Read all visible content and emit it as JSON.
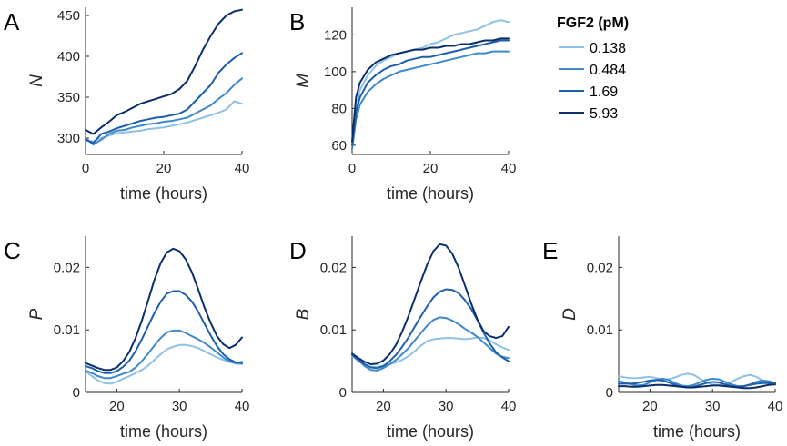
{
  "legend": {
    "title": "FGF2 (pM)",
    "entries": [
      "0.138",
      "0.484",
      "1.69",
      "5.93"
    ],
    "colors": [
      "#8ec1e6",
      "#3d89c9",
      "#1d5fa8",
      "#0b2f6b"
    ]
  },
  "chart_data": [
    {
      "id": "A",
      "type": "line",
      "panel_label": "A",
      "xlabel": "time (hours)",
      "ylabel": "N",
      "xlim": [
        0,
        40
      ],
      "ylim": [
        280,
        460
      ],
      "xticks": [
        0,
        20,
        40
      ],
      "yticks": [
        300,
        350,
        400,
        450
      ],
      "x": [
        0,
        2,
        4,
        6,
        8,
        10,
        12,
        14,
        16,
        18,
        20,
        22,
        24,
        26,
        28,
        30,
        32,
        34,
        36,
        38,
        40
      ],
      "series": [
        {
          "name": "0.138",
          "values": [
            297,
            296,
            300,
            303,
            306,
            307,
            308,
            309,
            311,
            312,
            313,
            315,
            317,
            319,
            322,
            325,
            328,
            331,
            335,
            345,
            342
          ]
        },
        {
          "name": "0.484",
          "values": [
            300,
            292,
            298,
            305,
            309,
            310,
            313,
            315,
            317,
            318,
            320,
            321,
            323,
            325,
            330,
            335,
            340,
            348,
            355,
            365,
            373
          ]
        },
        {
          "name": "1.69",
          "values": [
            298,
            294,
            305,
            308,
            312,
            315,
            318,
            321,
            323,
            325,
            326,
            328,
            330,
            335,
            345,
            355,
            365,
            380,
            390,
            398,
            404
          ]
        },
        {
          "name": "5.93",
          "values": [
            310,
            305,
            313,
            320,
            328,
            332,
            337,
            342,
            345,
            348,
            351,
            354,
            360,
            370,
            388,
            408,
            425,
            440,
            450,
            455,
            457
          ]
        }
      ]
    },
    {
      "id": "B",
      "type": "line",
      "panel_label": "B",
      "xlabel": "time (hours)",
      "ylabel": "M",
      "xlim": [
        0,
        40
      ],
      "ylim": [
        55,
        135
      ],
      "xticks": [
        0,
        20,
        40
      ],
      "yticks": [
        60,
        80,
        100,
        120
      ],
      "x": [
        0,
        1,
        2,
        4,
        6,
        8,
        10,
        12,
        14,
        16,
        18,
        20,
        22,
        24,
        26,
        28,
        30,
        32,
        34,
        36,
        38,
        40
      ],
      "series": [
        {
          "name": "0.138",
          "values": [
            60,
            80,
            90,
            98,
            103,
            106,
            108,
            110,
            111,
            112,
            113,
            115,
            116,
            118,
            120,
            121,
            122,
            123,
            125,
            127,
            128,
            127
          ]
        },
        {
          "name": "0.484",
          "values": [
            58,
            74,
            82,
            89,
            93,
            96,
            98,
            100,
            101,
            102,
            103,
            104,
            105,
            106,
            107,
            108,
            109,
            110,
            110,
            111,
            111,
            111
          ]
        },
        {
          "name": "1.69",
          "values": [
            60,
            78,
            86,
            94,
            98,
            101,
            103,
            104,
            106,
            107,
            108,
            108,
            109,
            110,
            111,
            112,
            113,
            114,
            115,
            116,
            117,
            117
          ]
        },
        {
          "name": "5.93",
          "values": [
            62,
            86,
            94,
            101,
            105,
            107,
            109,
            110,
            111,
            112,
            112,
            113,
            113,
            114,
            114,
            115,
            115,
            116,
            117,
            117,
            118,
            118
          ]
        }
      ]
    },
    {
      "id": "C",
      "type": "line",
      "panel_label": "C",
      "xlabel": "time (hours)",
      "ylabel": "P",
      "xlim": [
        15,
        40
      ],
      "ylim": [
        0,
        0.025
      ],
      "xticks": [
        20,
        30,
        40
      ],
      "yticks": [
        0,
        0.01,
        0.02
      ],
      "ytick_labels": [
        "0",
        "0.01",
        "0.02"
      ],
      "x": [
        15,
        16,
        17,
        18,
        19,
        20,
        21,
        22,
        23,
        24,
        25,
        26,
        27,
        28,
        29,
        30,
        31,
        32,
        33,
        34,
        35,
        36,
        37,
        38,
        39,
        40
      ],
      "series": [
        {
          "name": "0.138",
          "values": [
            0.0034,
            0.0026,
            0.0019,
            0.0015,
            0.0014,
            0.0017,
            0.0022,
            0.0026,
            0.0031,
            0.0036,
            0.0043,
            0.0052,
            0.0061,
            0.0069,
            0.0073,
            0.0076,
            0.0076,
            0.0074,
            0.0071,
            0.0066,
            0.0061,
            0.0056,
            0.0052,
            0.0049,
            0.0046,
            0.0045
          ]
        },
        {
          "name": "0.484",
          "values": [
            0.0035,
            0.0031,
            0.0026,
            0.0023,
            0.0023,
            0.0026,
            0.003,
            0.0033,
            0.004,
            0.005,
            0.0062,
            0.0075,
            0.0087,
            0.0096,
            0.0099,
            0.0099,
            0.0095,
            0.009,
            0.0085,
            0.0079,
            0.0072,
            0.0064,
            0.0056,
            0.005,
            0.0047,
            0.0049
          ]
        },
        {
          "name": "1.69",
          "values": [
            0.0042,
            0.0039,
            0.0034,
            0.0031,
            0.0031,
            0.0034,
            0.0041,
            0.0051,
            0.0066,
            0.0085,
            0.0106,
            0.0127,
            0.0145,
            0.0158,
            0.0162,
            0.0162,
            0.0156,
            0.0145,
            0.0129,
            0.011,
            0.0091,
            0.0074,
            0.0061,
            0.0053,
            0.0048,
            0.0047
          ]
        },
        {
          "name": "5.93",
          "values": [
            0.0047,
            0.0043,
            0.0039,
            0.0036,
            0.0036,
            0.004,
            0.005,
            0.0065,
            0.0087,
            0.0115,
            0.0147,
            0.018,
            0.0207,
            0.0224,
            0.023,
            0.0226,
            0.0213,
            0.0192,
            0.0165,
            0.0136,
            0.0111,
            0.009,
            0.0077,
            0.0071,
            0.0076,
            0.0088
          ]
        }
      ]
    },
    {
      "id": "D",
      "type": "line",
      "panel_label": "D",
      "xlabel": "time (hours)",
      "ylabel": "B",
      "xlim": [
        15,
        40
      ],
      "ylim": [
        0,
        0.025
      ],
      "xticks": [
        20,
        30,
        40
      ],
      "yticks": [
        0,
        0.01,
        0.02
      ],
      "ytick_labels": [
        "0",
        "0.01",
        "0.02"
      ],
      "x": [
        15,
        16,
        17,
        18,
        19,
        20,
        21,
        22,
        23,
        24,
        25,
        26,
        27,
        28,
        29,
        30,
        31,
        32,
        33,
        34,
        35,
        36,
        37,
        38,
        39,
        40
      ],
      "series": [
        {
          "name": "0.138",
          "values": [
            0.0058,
            0.005,
            0.0043,
            0.0041,
            0.0041,
            0.0043,
            0.0045,
            0.0048,
            0.0052,
            0.0058,
            0.0066,
            0.0075,
            0.0082,
            0.0085,
            0.0086,
            0.0087,
            0.0087,
            0.0086,
            0.0085,
            0.0086,
            0.0088,
            0.0087,
            0.0083,
            0.0077,
            0.0072,
            0.0068
          ]
        },
        {
          "name": "0.484",
          "values": [
            0.0062,
            0.0052,
            0.0042,
            0.0036,
            0.0035,
            0.0039,
            0.0045,
            0.0052,
            0.0061,
            0.0071,
            0.0083,
            0.0095,
            0.0107,
            0.0116,
            0.012,
            0.0119,
            0.0115,
            0.0109,
            0.0102,
            0.0096,
            0.0089,
            0.008,
            0.0071,
            0.0062,
            0.0057,
            0.0055
          ]
        },
        {
          "name": "1.69",
          "values": [
            0.006,
            0.0052,
            0.0045,
            0.004,
            0.0039,
            0.0042,
            0.005,
            0.006,
            0.0073,
            0.0088,
            0.0105,
            0.0122,
            0.0138,
            0.0152,
            0.0161,
            0.0165,
            0.0164,
            0.0159,
            0.0148,
            0.0134,
            0.0116,
            0.0096,
            0.0078,
            0.0064,
            0.0056,
            0.005
          ]
        },
        {
          "name": "5.93",
          "values": [
            0.0062,
            0.0055,
            0.0049,
            0.0045,
            0.0046,
            0.0051,
            0.0061,
            0.0076,
            0.0097,
            0.0122,
            0.015,
            0.0178,
            0.0205,
            0.0226,
            0.0237,
            0.0235,
            0.0222,
            0.02,
            0.0172,
            0.0143,
            0.0117,
            0.0098,
            0.009,
            0.0087,
            0.009,
            0.0105
          ]
        }
      ]
    },
    {
      "id": "E",
      "type": "line",
      "panel_label": "E",
      "xlabel": "time (hours)",
      "ylabel": "D",
      "xlim": [
        15,
        40
      ],
      "ylim": [
        0,
        0.025
      ],
      "xticks": [
        20,
        30,
        40
      ],
      "yticks": [
        0,
        0.01,
        0.02
      ],
      "ytick_labels": [
        "0",
        "0.01",
        "0.02"
      ],
      "x": [
        15,
        16,
        17,
        18,
        19,
        20,
        21,
        22,
        23,
        24,
        25,
        26,
        27,
        28,
        29,
        30,
        31,
        32,
        33,
        34,
        35,
        36,
        37,
        38,
        39,
        40
      ],
      "series": [
        {
          "name": "0.138",
          "values": [
            0.0026,
            0.0024,
            0.0023,
            0.0023,
            0.0024,
            0.0025,
            0.0023,
            0.0021,
            0.0021,
            0.0024,
            0.0028,
            0.003,
            0.0028,
            0.0022,
            0.0016,
            0.0013,
            0.0012,
            0.0013,
            0.0017,
            0.0022,
            0.0026,
            0.0028,
            0.0025,
            0.0019,
            0.0014,
            0.0012
          ]
        },
        {
          "name": "0.484",
          "values": [
            0.0018,
            0.0016,
            0.0013,
            0.0011,
            0.0012,
            0.0016,
            0.002,
            0.0022,
            0.002,
            0.0015,
            0.0011,
            0.001,
            0.0012,
            0.0016,
            0.002,
            0.0022,
            0.0021,
            0.0017,
            0.0013,
            0.001,
            0.001,
            0.0013,
            0.0017,
            0.0019,
            0.0018,
            0.0015
          ]
        },
        {
          "name": "1.69",
          "values": [
            0.0014,
            0.0014,
            0.0014,
            0.0015,
            0.0017,
            0.0019,
            0.002,
            0.0019,
            0.0016,
            0.0012,
            0.0009,
            0.0008,
            0.0009,
            0.0012,
            0.0015,
            0.0017,
            0.0016,
            0.0013,
            0.001,
            0.0009,
            0.001,
            0.0012,
            0.0014,
            0.0015,
            0.0015,
            0.0016
          ]
        },
        {
          "name": "5.93",
          "values": [
            0.001,
            0.001,
            0.0009,
            0.0009,
            0.001,
            0.0011,
            0.0012,
            0.0012,
            0.0011,
            0.001,
            0.0009,
            0.0008,
            0.0008,
            0.0009,
            0.001,
            0.0011,
            0.0011,
            0.001,
            0.0009,
            0.0008,
            0.0007,
            0.0007,
            0.0008,
            0.001,
            0.0012,
            0.0013
          ]
        }
      ]
    }
  ]
}
